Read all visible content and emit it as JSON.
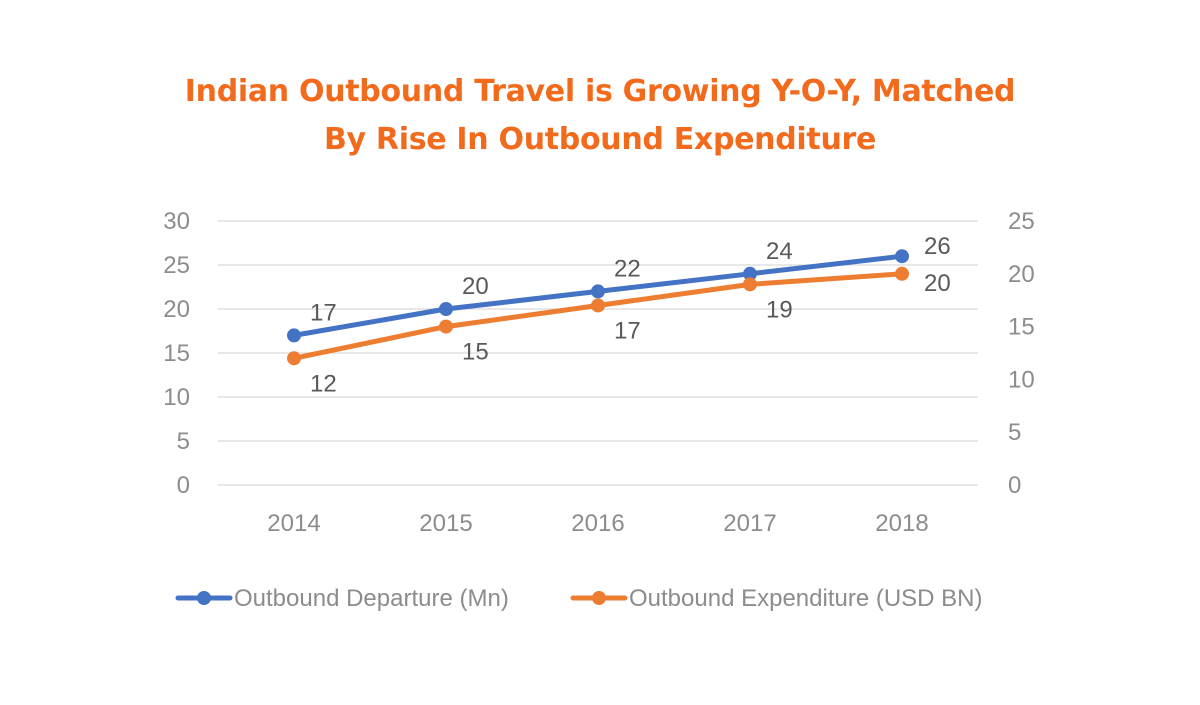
{
  "chart_data": {
    "type": "line",
    "title": "Indian Outbound Travel is Growing Y-O-Y, Matched By Rise In Outbound Expenditure",
    "title_lines": [
      "Indian Outbound Travel is Growing Y-O-Y, Matched",
      "By Rise In Outbound Expenditure"
    ],
    "categories": [
      "2014",
      "2015",
      "2016",
      "2017",
      "2018"
    ],
    "series": [
      {
        "name": "Outbound Departure (Mn)",
        "axis": "left",
        "values": [
          17,
          20,
          22,
          24,
          26
        ],
        "labels": [
          "17",
          "20",
          "22",
          "24",
          "26"
        ],
        "label_position": "above",
        "color": "#4472c4"
      },
      {
        "name": "Outbound Expenditure (USD BN)",
        "axis": "right",
        "values": [
          12,
          15,
          17,
          19,
          20
        ],
        "labels": [
          "12",
          "15",
          "17",
          "19",
          "20"
        ],
        "label_position": "below",
        "color": "#ed7d31"
      }
    ],
    "y_left": {
      "min": 0,
      "max": 30,
      "ticks": [
        0,
        5,
        10,
        15,
        20,
        25,
        30
      ]
    },
    "y_right": {
      "min": 0,
      "max": 25,
      "ticks": [
        0,
        5,
        10,
        15,
        20,
        25
      ]
    },
    "grid": true,
    "legend": "bottom",
    "title_color": "#f26b1d"
  }
}
